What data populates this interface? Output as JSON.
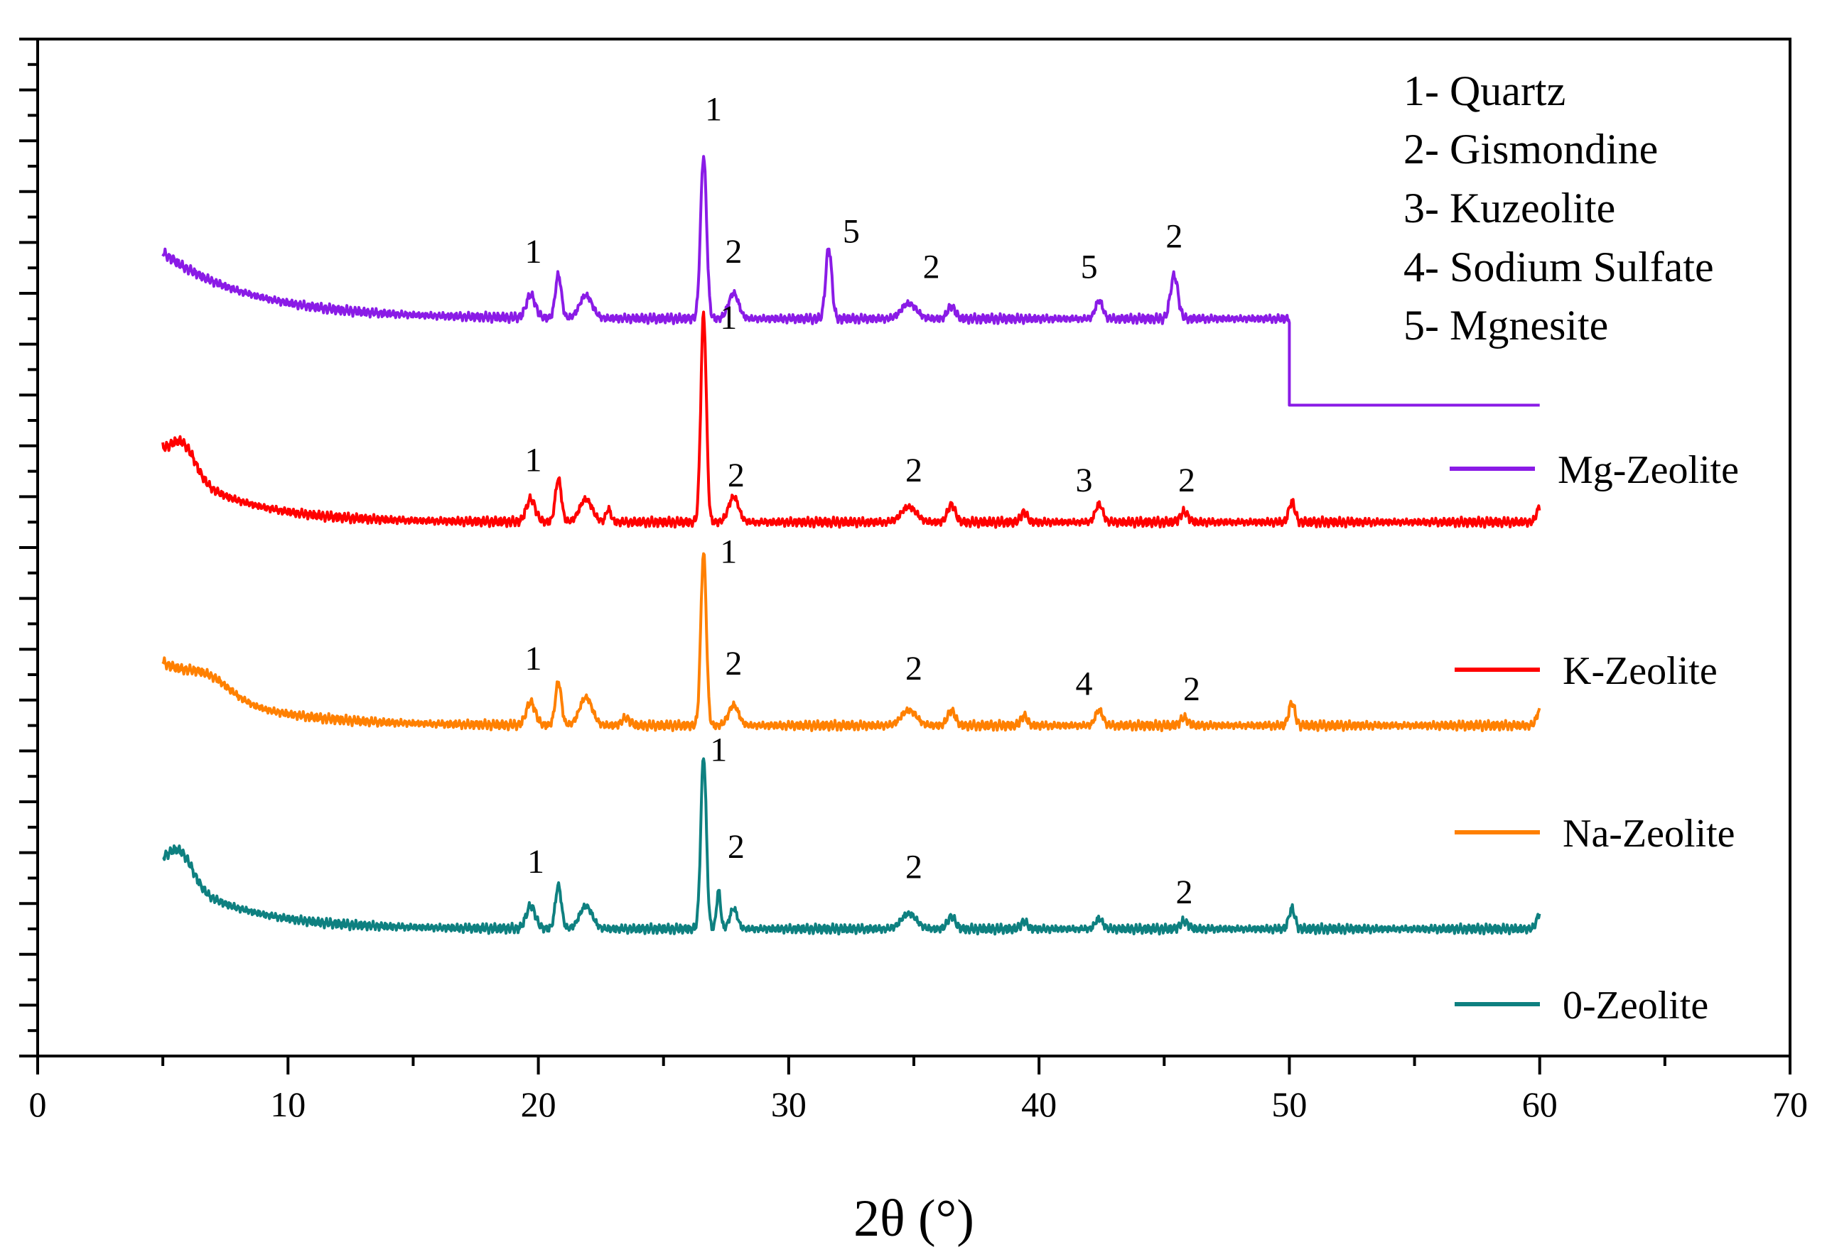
{
  "chart_data": {
    "type": "line",
    "xlabel": "2θ (°)",
    "ylabel": "",
    "xlim": [
      0,
      70
    ],
    "x_ticks": [
      "0",
      "10",
      "20",
      "30",
      "40",
      "50",
      "60",
      "70"
    ],
    "y_ticks_labeled": false,
    "grid": false,
    "phase_key": [
      "1- Quartz",
      "2- Gismondine",
      "3- Kuzeolite",
      "4- Sodium Sulfate",
      "5- Mgnesite"
    ],
    "series": [
      {
        "name": "Mg-Zeolite",
        "color": "#8a1be6",
        "baseline": 14.5,
        "start_offset": 1.3,
        "decay": 3.5,
        "x_end": 50.0,
        "tail_value": 12.8,
        "tail_x_end": 60.0,
        "peaks": [
          {
            "x": 19.7,
            "h": 0.45,
            "w": 0.18
          },
          {
            "x": 20.8,
            "h": 0.85,
            "w": 0.12
          },
          {
            "x": 21.9,
            "h": 0.45,
            "w": 0.25
          },
          {
            "x": 26.6,
            "h": 3.2,
            "w": 0.12
          },
          {
            "x": 27.8,
            "h": 0.5,
            "w": 0.2
          },
          {
            "x": 31.6,
            "h": 1.4,
            "w": 0.12
          },
          {
            "x": 34.8,
            "h": 0.3,
            "w": 0.3
          },
          {
            "x": 36.5,
            "h": 0.25,
            "w": 0.15
          },
          {
            "x": 42.4,
            "h": 0.35,
            "w": 0.15
          },
          {
            "x": 45.4,
            "h": 0.85,
            "w": 0.15
          }
        ],
        "peak_labels": [
          {
            "x": 19.8,
            "y": 15.6,
            "text": "1"
          },
          {
            "x": 27.0,
            "y": 18.4,
            "text": "1"
          },
          {
            "x": 27.8,
            "y": 15.6,
            "text": "2"
          },
          {
            "x": 32.5,
            "y": 16.0,
            "text": "5"
          },
          {
            "x": 35.7,
            "y": 15.3,
            "text": "2"
          },
          {
            "x": 42.0,
            "y": 15.3,
            "text": "5"
          },
          {
            "x": 45.4,
            "y": 15.9,
            "text": "2"
          }
        ]
      },
      {
        "name": "K-Zeolite",
        "color": "#ff0000",
        "baseline": 10.5,
        "start_offset": 1.3,
        "decay": 2.7,
        "shoulder": {
          "x": 5.8,
          "h": 0.6,
          "w": 0.5
        },
        "x_end": 60.0,
        "peaks": [
          {
            "x": 19.7,
            "h": 0.45,
            "w": 0.18
          },
          {
            "x": 20.8,
            "h": 0.85,
            "w": 0.12
          },
          {
            "x": 21.9,
            "h": 0.45,
            "w": 0.25
          },
          {
            "x": 22.8,
            "h": 0.25,
            "w": 0.1
          },
          {
            "x": 26.6,
            "h": 4.1,
            "w": 0.11
          },
          {
            "x": 27.8,
            "h": 0.5,
            "w": 0.2
          },
          {
            "x": 34.8,
            "h": 0.3,
            "w": 0.3
          },
          {
            "x": 36.5,
            "h": 0.35,
            "w": 0.15
          },
          {
            "x": 39.4,
            "h": 0.2,
            "w": 0.12
          },
          {
            "x": 42.4,
            "h": 0.35,
            "w": 0.15
          },
          {
            "x": 45.8,
            "h": 0.2,
            "w": 0.15
          },
          {
            "x": 50.1,
            "h": 0.4,
            "w": 0.12
          },
          {
            "x": 60.0,
            "h": 0.3,
            "w": 0.12
          }
        ],
        "peak_labels": [
          {
            "x": 19.8,
            "y": 11.5,
            "text": "1"
          },
          {
            "x": 27.6,
            "y": 14.3,
            "text": "1"
          },
          {
            "x": 27.9,
            "y": 11.2,
            "text": "2"
          },
          {
            "x": 35.0,
            "y": 11.3,
            "text": "2"
          },
          {
            "x": 41.8,
            "y": 11.1,
            "text": "3"
          },
          {
            "x": 45.9,
            "y": 11.1,
            "text": "2"
          }
        ]
      },
      {
        "name": "Na-Zeolite",
        "color": "#ff8000",
        "baseline": 6.5,
        "start_offset": 1.2,
        "decay": 3.0,
        "shoulder": {
          "x": 6.8,
          "h": 0.35,
          "w": 0.9
        },
        "x_end": 60.0,
        "peaks": [
          {
            "x": 19.7,
            "h": 0.45,
            "w": 0.18
          },
          {
            "x": 20.8,
            "h": 0.85,
            "w": 0.12
          },
          {
            "x": 21.9,
            "h": 0.55,
            "w": 0.25
          },
          {
            "x": 23.5,
            "h": 0.15,
            "w": 0.15
          },
          {
            "x": 26.6,
            "h": 3.4,
            "w": 0.11
          },
          {
            "x": 27.8,
            "h": 0.4,
            "w": 0.2
          },
          {
            "x": 34.8,
            "h": 0.3,
            "w": 0.3
          },
          {
            "x": 36.5,
            "h": 0.3,
            "w": 0.15
          },
          {
            "x": 39.4,
            "h": 0.2,
            "w": 0.12
          },
          {
            "x": 42.4,
            "h": 0.3,
            "w": 0.15
          },
          {
            "x": 45.8,
            "h": 0.15,
            "w": 0.15
          },
          {
            "x": 50.1,
            "h": 0.45,
            "w": 0.12
          },
          {
            "x": 60.0,
            "h": 0.3,
            "w": 0.12
          }
        ],
        "peak_labels": [
          {
            "x": 19.8,
            "y": 7.6,
            "text": "1"
          },
          {
            "x": 27.6,
            "y": 9.7,
            "text": "1"
          },
          {
            "x": 27.8,
            "y": 7.5,
            "text": "2"
          },
          {
            "x": 35.0,
            "y": 7.4,
            "text": "2"
          },
          {
            "x": 41.8,
            "y": 7.1,
            "text": "4"
          },
          {
            "x": 46.1,
            "y": 7.0,
            "text": "2"
          }
        ]
      },
      {
        "name": "0-Zeolite",
        "color": "#0e8080",
        "baseline": 2.5,
        "start_offset": 1.2,
        "decay": 2.8,
        "shoulder": {
          "x": 5.7,
          "h": 0.6,
          "w": 0.5
        },
        "x_end": 60.0,
        "peaks": [
          {
            "x": 19.7,
            "h": 0.45,
            "w": 0.18
          },
          {
            "x": 20.8,
            "h": 0.85,
            "w": 0.12
          },
          {
            "x": 21.9,
            "h": 0.45,
            "w": 0.25
          },
          {
            "x": 26.6,
            "h": 3.4,
            "w": 0.11
          },
          {
            "x": 27.2,
            "h": 0.75,
            "w": 0.08
          },
          {
            "x": 27.8,
            "h": 0.4,
            "w": 0.15
          },
          {
            "x": 34.8,
            "h": 0.3,
            "w": 0.3
          },
          {
            "x": 36.5,
            "h": 0.25,
            "w": 0.15
          },
          {
            "x": 39.4,
            "h": 0.15,
            "w": 0.12
          },
          {
            "x": 42.4,
            "h": 0.2,
            "w": 0.15
          },
          {
            "x": 45.8,
            "h": 0.15,
            "w": 0.15
          },
          {
            "x": 50.1,
            "h": 0.4,
            "w": 0.12
          },
          {
            "x": 60.0,
            "h": 0.3,
            "w": 0.12
          }
        ],
        "peak_labels": [
          {
            "x": 19.9,
            "y": 3.6,
            "text": "1"
          },
          {
            "x": 27.2,
            "y": 5.8,
            "text": "1"
          },
          {
            "x": 27.9,
            "y": 3.9,
            "text": "2"
          },
          {
            "x": 35.0,
            "y": 3.5,
            "text": "2"
          },
          {
            "x": 45.8,
            "y": 3.0,
            "text": "2"
          }
        ]
      }
    ]
  }
}
